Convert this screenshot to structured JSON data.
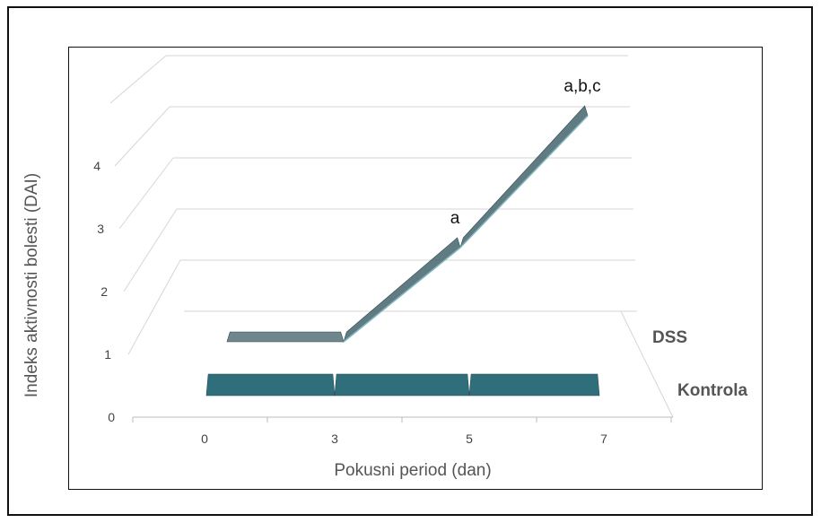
{
  "chart_data": {
    "type": "line",
    "style": "3d",
    "title": "",
    "xlabel": "Pokusni period (dan)",
    "ylabel": "Indeks aktivnosti bolesti (DAI)",
    "categories": [
      "0",
      "3",
      "5",
      "7"
    ],
    "ylim": [
      0,
      4
    ],
    "yticks": [
      "0",
      "1",
      "2",
      "3",
      "4"
    ],
    "grid": true,
    "series": [
      {
        "name": "DSS",
        "values": [
          0,
          0,
          1.5,
          3.6
        ],
        "annotations": [
          "",
          "",
          "a",
          "a,b,c"
        ],
        "color": "#3e5e66"
      },
      {
        "name": "Kontrola",
        "values": [
          0,
          0,
          0,
          0
        ],
        "annotations": [
          "",
          "",
          "",
          ""
        ],
        "color": "#2f6f7b"
      }
    ]
  }
}
